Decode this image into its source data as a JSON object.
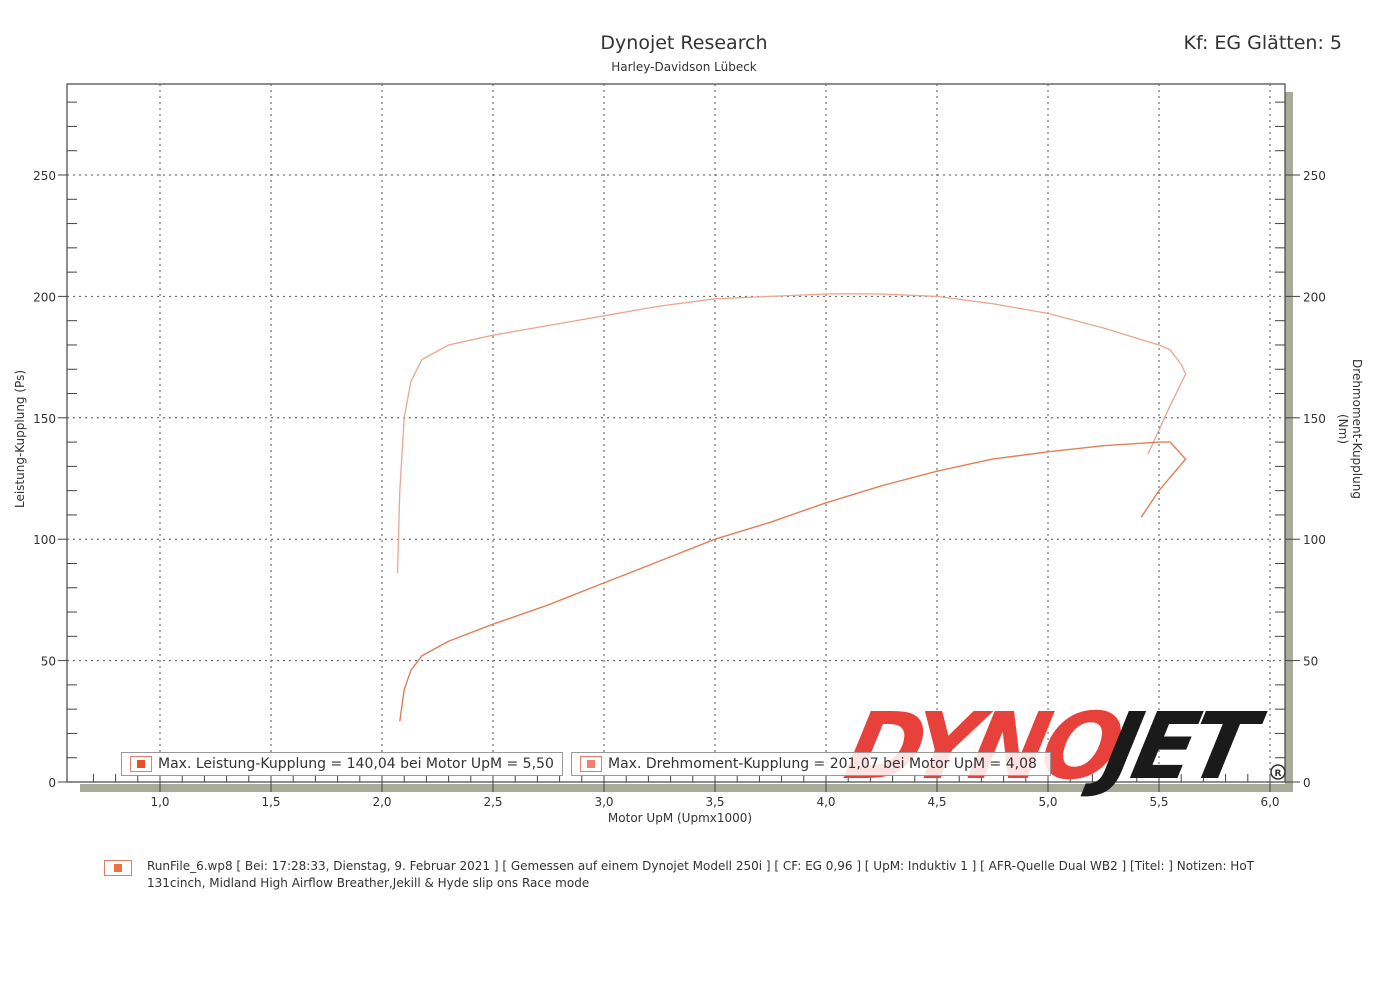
{
  "header": {
    "title": "Dynojet Research",
    "subtitle": "Harley-Davidson Lübeck",
    "correction": "Kf: EG Glätten: 5"
  },
  "legend": {
    "items": [
      {
        "label": "Max. Leistung-Kupplung = 140,04 bei Motor UpM = 5,50",
        "color": "#e8502a"
      },
      {
        "label": "Max. Drehmoment-Kupplung = 201,07 bei Motor UpM = 4,08",
        "color": "#f08070"
      }
    ]
  },
  "footer": {
    "run_info": "RunFile_6.wp8 [ Bei: 17:28:33, Dienstag, 9. Februar 2021 ] [ Gemessen auf einem Dynojet Modell 250i ] [ CF: EG 0,96 ] [ UpM: Induktiv 1 ] [ AFR-Quelle  Dual WB2 ] [Titel: ]  Notizen: HoT 131cinch, Midland High Airflow Breather,Jekill & Hyde slip ons Race mode"
  },
  "logo": {
    "text_red": "DYNO",
    "text_black": "JET",
    "registered": "®"
  },
  "colors": {
    "power": "#e0805a",
    "torque": "#e8a890",
    "grid": "#555555",
    "logo_red": "#e8403a",
    "logo_black": "#1a1a1a"
  },
  "chart_data": {
    "type": "line",
    "title": "Dynojet Research",
    "subtitle": "Harley-Davidson Lübeck",
    "xlabel": "Motor UpM (Upmx1000)",
    "ylabel_left": "Leistung-Kupplung (Ps)",
    "ylabel_right": "Drehmoment-Kupplung (Nm)",
    "xlim": [
      0.58,
      6.07
    ],
    "ylim": [
      0,
      287
    ],
    "xticks": [
      "1,0",
      "1,5",
      "2,0",
      "2,5",
      "3,0",
      "3,5",
      "4,0",
      "4,5",
      "5,0",
      "5,5",
      "6,0"
    ],
    "yticks_left": [
      "0",
      "50",
      "100",
      "150",
      "200",
      "250"
    ],
    "yticks_right": [
      "0",
      "50",
      "100",
      "150",
      "200",
      "250"
    ],
    "grid": true,
    "legend_position": "bottom-inside",
    "series": [
      {
        "name": "Leistung-Kupplung (Ps)",
        "axis": "left",
        "max_label": "Max. Leistung-Kupplung = 140,04 bei Motor UpM = 5,50",
        "x": [
          2.08,
          2.1,
          2.13,
          2.18,
          2.3,
          2.5,
          2.75,
          3.0,
          3.25,
          3.5,
          3.75,
          4.0,
          4.25,
          4.5,
          4.75,
          5.0,
          5.25,
          5.5,
          5.55,
          5.58,
          5.62,
          5.5,
          5.42
        ],
        "y": [
          25,
          38,
          46,
          52,
          58,
          65,
          73,
          82,
          91,
          100,
          107,
          115,
          122,
          128,
          133,
          136,
          138.5,
          140,
          140,
          137,
          133,
          120,
          109
        ]
      },
      {
        "name": "Drehmoment-Kupplung (Nm)",
        "axis": "right",
        "max_label": "Max. Drehmoment-Kupplung = 201,07 bei Motor UpM = 4,08",
        "x": [
          2.07,
          2.08,
          2.1,
          2.13,
          2.18,
          2.3,
          2.5,
          2.75,
          3.0,
          3.25,
          3.5,
          3.75,
          4.0,
          4.08,
          4.25,
          4.5,
          4.75,
          5.0,
          5.25,
          5.5,
          5.55,
          5.6,
          5.62,
          5.55,
          5.45
        ],
        "y": [
          86,
          120,
          150,
          165,
          174,
          180,
          184,
          188,
          192,
          196,
          199,
          200,
          201,
          201.07,
          201,
          200,
          197,
          193,
          187,
          180,
          178,
          172,
          168,
          155,
          135
        ]
      }
    ]
  }
}
